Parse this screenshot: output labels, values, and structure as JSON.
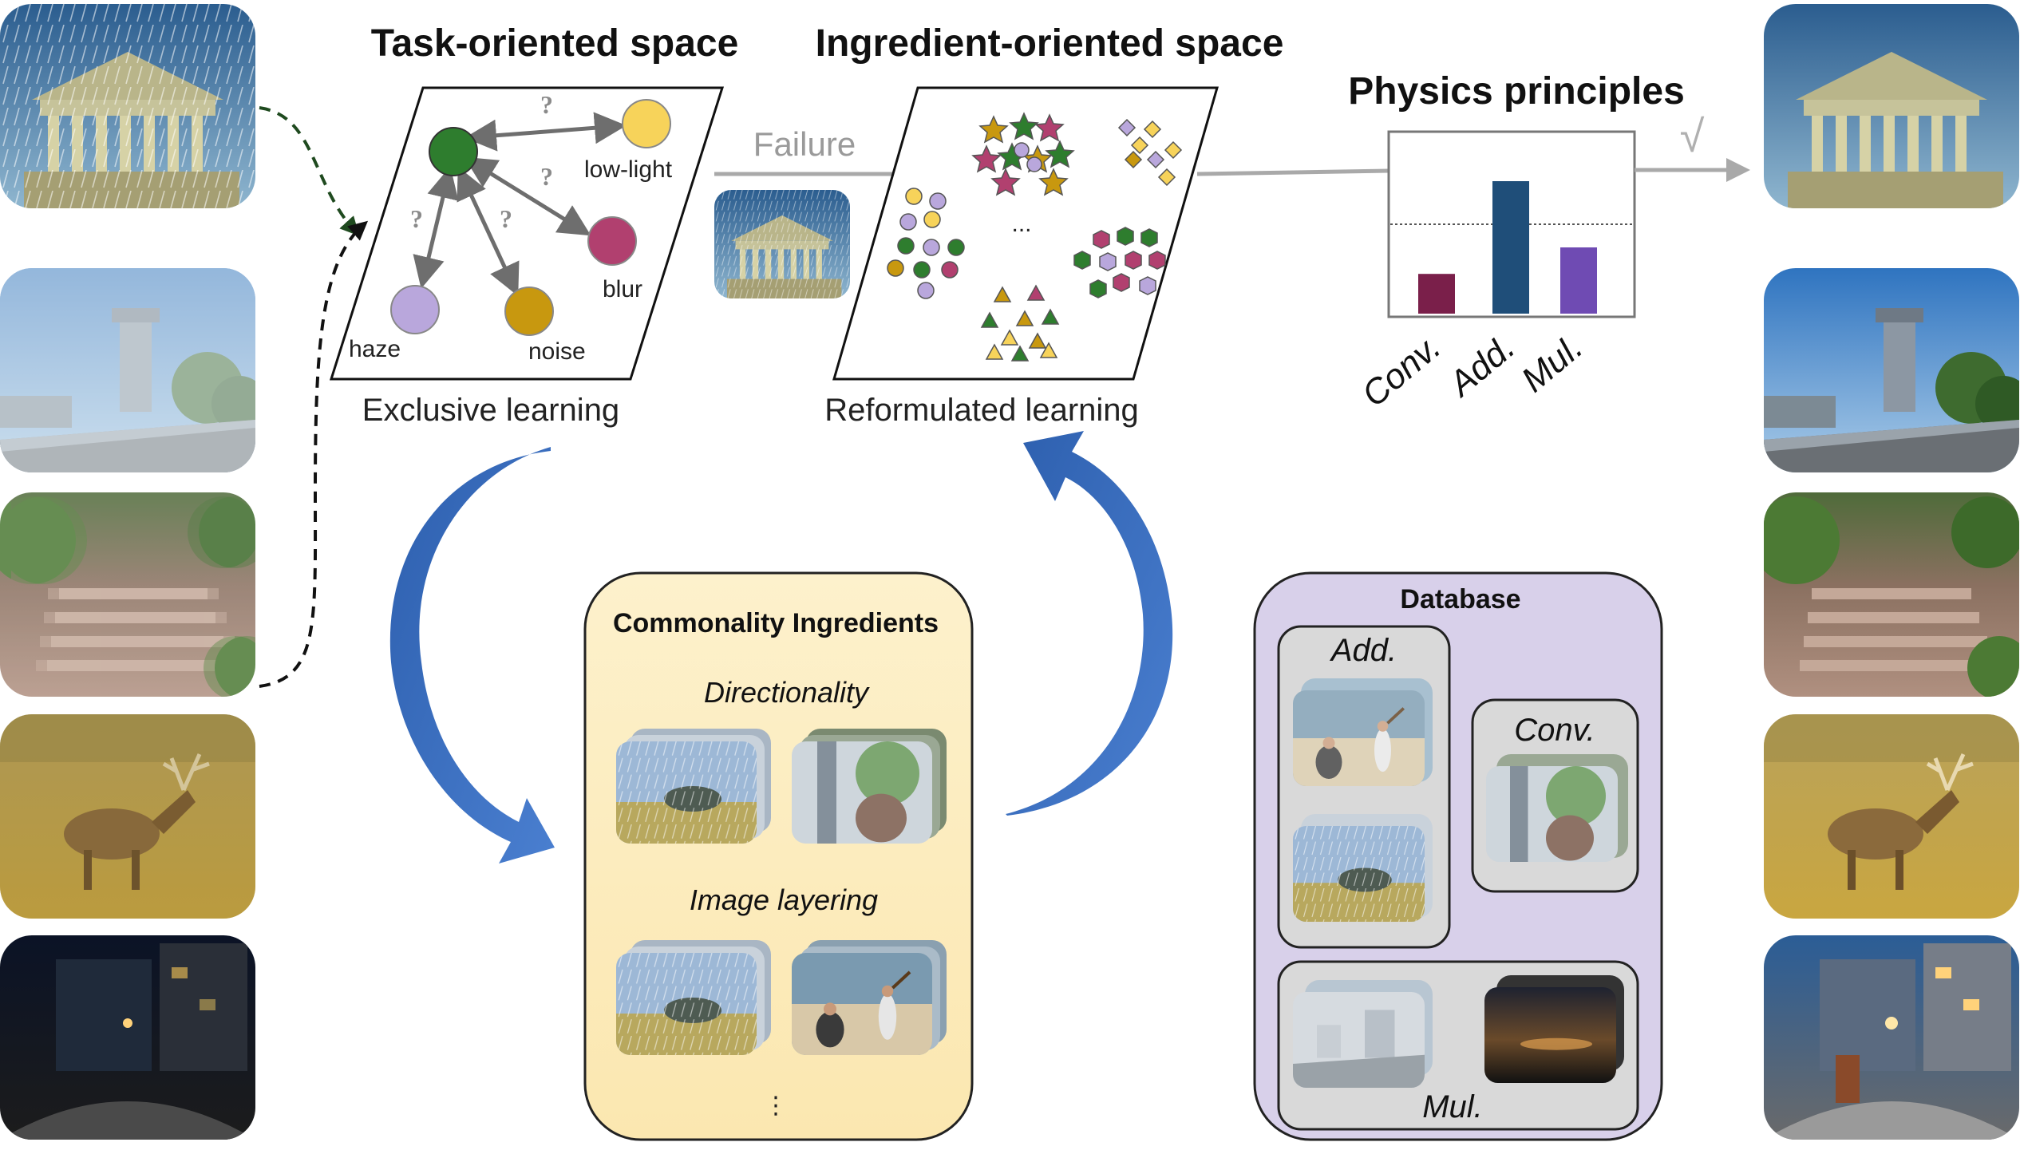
{
  "titles": {
    "task_space": "Task-oriented space",
    "ingredient_space": "Ingredient-oriented space",
    "physics": "Physics principles"
  },
  "captions": {
    "exclusive": "Exclusive learning",
    "reformulated": "Reformulated learning"
  },
  "arrows": {
    "failure": "Failure",
    "success_mark": "√"
  },
  "task_nodes": [
    {
      "label": "low-light",
      "color": "#f7d35a"
    },
    {
      "label": "blur",
      "color": "#b1406f"
    },
    {
      "label": "haze",
      "color": "#b9a7dc"
    },
    {
      "label": "noise",
      "color": "#c8980f"
    }
  ],
  "task_center_color": "#2e7d2e",
  "question_mark": "?",
  "ellipsis": "...",
  "vertical_ellipsis": "⋮",
  "physics_chart": {
    "categories": [
      "Conv.",
      "Add.",
      "Mul."
    ],
    "values": [
      0.3,
      1.0,
      0.5
    ],
    "colors": [
      "#7a1f4a",
      "#1f4e79",
      "#6f4bb3"
    ]
  },
  "commonality": {
    "title": "Commonality Ingredients",
    "sections": [
      "Directionality",
      "Image layering"
    ]
  },
  "database": {
    "title": "Database",
    "groups": [
      "Add.",
      "Conv.",
      "Mul."
    ]
  }
}
